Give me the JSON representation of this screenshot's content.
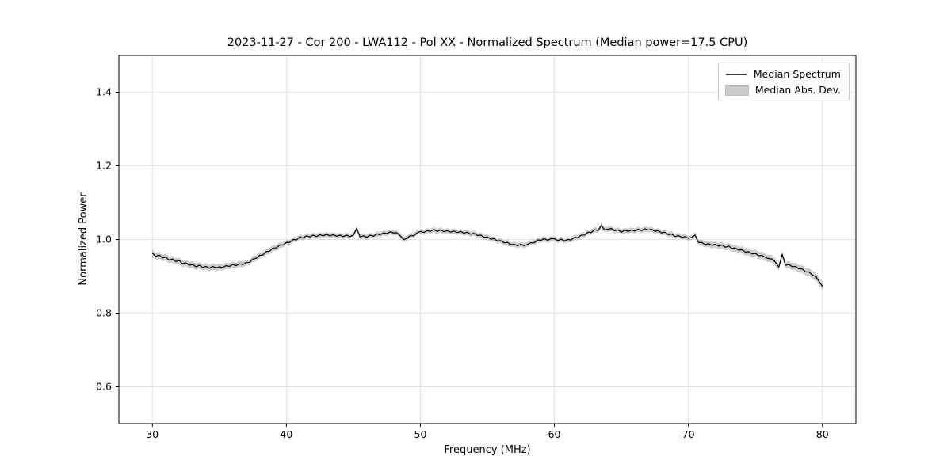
{
  "figure": {
    "title": "2023-11-27 - Cor 200 - LWA112 - Pol XX - Normalized Spectrum (Median power=17.5 CPU)",
    "xlabel": "Frequency (MHz)",
    "ylabel": "Normalized Power",
    "background": "#ffffff",
    "line_color": "#000000",
    "band_color": "#bdbdbd",
    "grid_color": "#e3e3e3",
    "legend": [
      {
        "label": "Median Spectrum",
        "type": "line"
      },
      {
        "label": "Median Abs. Dev.",
        "type": "patch"
      }
    ]
  },
  "chart_data": {
    "type": "line",
    "title": "2023-11-27 - Cor 200 - LWA112 - Pol XX - Normalized Spectrum (Median power=17.5 CPU)",
    "xlabel": "Frequency (MHz)",
    "ylabel": "Normalized Power",
    "xlim": [
      27.5,
      82.5
    ],
    "ylim": [
      0.5,
      1.5
    ],
    "xtick_values": [
      30,
      40,
      50,
      60,
      70,
      80
    ],
    "xtick_labels": [
      "30",
      "40",
      "50",
      "60",
      "70",
      "80"
    ],
    "ytick_values": [
      0.6,
      0.8,
      1.0,
      1.2,
      1.4
    ],
    "ytick_labels": [
      "0.6",
      "0.8",
      "1.0",
      "1.2",
      "1.4"
    ],
    "grid": true,
    "legend_position": "upper right",
    "x_start": 30,
    "x_step": 0.25,
    "series": [
      {
        "name": "Median Spectrum",
        "values": [
          0.963,
          0.954,
          0.958,
          0.95,
          0.952,
          0.944,
          0.947,
          0.94,
          0.943,
          0.934,
          0.937,
          0.93,
          0.932,
          0.926,
          0.93,
          0.924,
          0.927,
          0.922,
          0.927,
          0.923,
          0.926,
          0.924,
          0.929,
          0.927,
          0.932,
          0.929,
          0.934,
          0.932,
          0.937,
          0.938,
          0.947,
          0.949,
          0.957,
          0.958,
          0.967,
          0.968,
          0.977,
          0.977,
          0.985,
          0.985,
          0.992,
          0.992,
          1.0,
          0.999,
          1.007,
          1.004,
          1.01,
          1.007,
          1.012,
          1.008,
          1.013,
          1.01,
          1.014,
          1.01,
          1.013,
          1.009,
          1.012,
          1.008,
          1.012,
          1.008,
          1.012,
          1.03,
          1.007,
          1.01,
          1.006,
          1.012,
          1.009,
          1.015,
          1.013,
          1.018,
          1.016,
          1.021,
          1.018,
          1.018,
          1.01,
          1.0,
          1.003,
          1.011,
          1.01,
          1.018,
          1.022,
          1.019,
          1.024,
          1.022,
          1.027,
          1.022,
          1.026,
          1.021,
          1.024,
          1.02,
          1.023,
          1.019,
          1.022,
          1.017,
          1.02,
          1.014,
          1.017,
          1.011,
          1.012,
          1.006,
          1.007,
          1.001,
          1.002,
          0.996,
          0.997,
          0.991,
          0.992,
          0.986,
          0.987,
          0.983,
          0.987,
          0.983,
          0.987,
          0.991,
          0.991,
          0.999,
          0.998,
          1.002,
          0.998,
          1.002,
          1.002,
          0.997,
          1.001,
          0.996,
          1.0,
          0.999,
          1.006,
          1.005,
          1.012,
          1.012,
          1.02,
          1.019,
          1.027,
          1.024,
          1.038,
          1.026,
          1.028,
          1.03,
          1.024,
          1.026,
          1.02,
          1.025,
          1.022,
          1.026,
          1.023,
          1.028,
          1.024,
          1.029,
          1.026,
          1.028,
          1.022,
          1.024,
          1.018,
          1.02,
          1.013,
          1.015,
          1.008,
          1.011,
          1.006,
          1.008,
          1.003,
          1.006,
          1.012,
          0.992,
          0.992,
          0.986,
          0.989,
          0.984,
          0.987,
          0.982,
          0.985,
          0.979,
          0.982,
          0.976,
          0.977,
          0.971,
          0.972,
          0.966,
          0.967,
          0.961,
          0.962,
          0.956,
          0.957,
          0.951,
          0.948,
          0.947,
          0.938,
          0.925,
          0.96,
          0.93,
          0.932,
          0.926,
          0.927,
          0.92,
          0.92,
          0.912,
          0.912,
          0.903,
          0.9,
          0.886,
          0.873
        ]
      },
      {
        "name": "Median Abs. Dev.",
        "band_x_start": 30,
        "band_x_step": 1.0,
        "band_halfwidth": [
          0.01,
          0.009,
          0.009,
          0.009,
          0.009,
          0.009,
          0.008,
          0.008,
          0.008,
          0.008,
          0.007,
          0.007,
          0.007,
          0.007,
          0.007,
          0.007,
          0.007,
          0.007,
          0.007,
          0.007,
          0.007,
          0.007,
          0.007,
          0.007,
          0.007,
          0.007,
          0.007,
          0.007,
          0.007,
          0.007,
          0.007,
          0.007,
          0.007,
          0.007,
          0.007,
          0.007,
          0.007,
          0.007,
          0.007,
          0.007,
          0.007,
          0.008,
          0.009,
          0.009,
          0.01,
          0.01,
          0.01,
          0.009,
          0.01,
          0.011,
          0.011
        ]
      }
    ]
  }
}
